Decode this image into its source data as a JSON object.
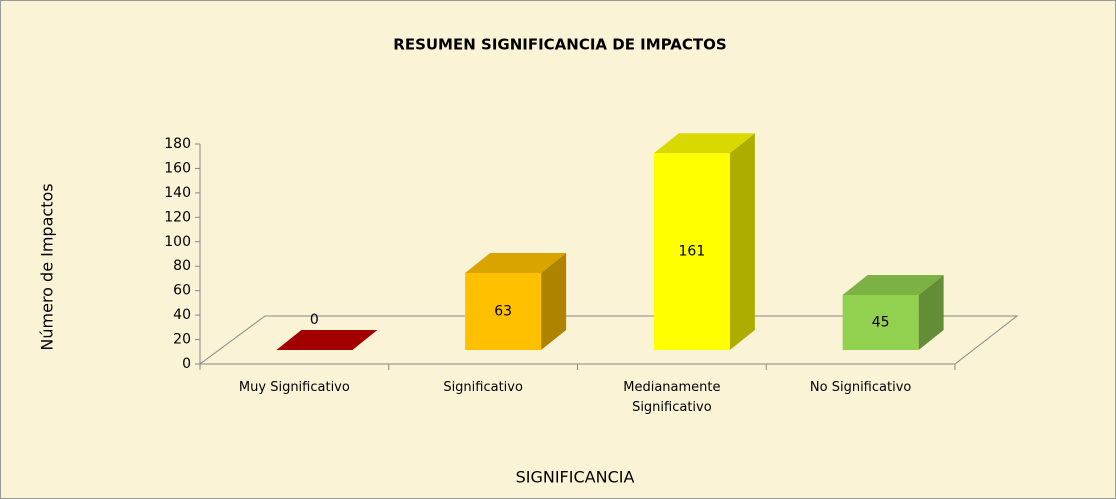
{
  "chart_data": {
    "type": "bar3d",
    "title": "RESUMEN SIGNIFICANCIA DE IMPACTOS",
    "x_label": "SIGNIFICANCIA",
    "y_label": "Número de Impactos",
    "categories": [
      "Muy Significativo",
      "Significativo",
      "Medianamente Significativo",
      "No Significativo"
    ],
    "values": [
      0,
      63,
      161,
      45
    ],
    "colors": [
      "#c00000",
      "#ffc000",
      "#ffff00",
      "#92d050"
    ],
    "ylim": [
      0,
      180
    ],
    "yticks": [
      0,
      20,
      40,
      60,
      80,
      100,
      120,
      140,
      160,
      180
    ]
  }
}
